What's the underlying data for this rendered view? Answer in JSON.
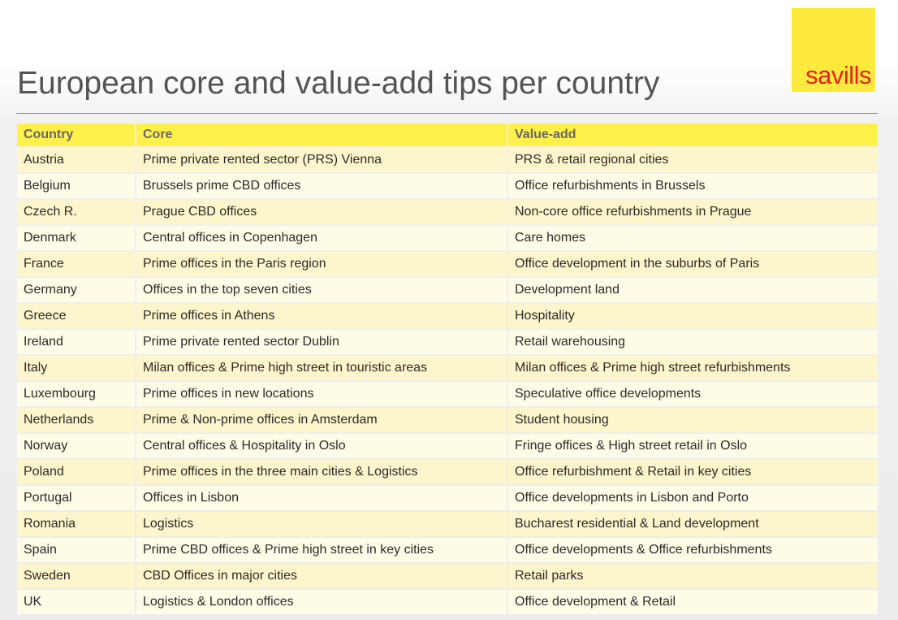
{
  "title": "European core and value-add tips per country",
  "logo": {
    "text": "savills",
    "background": "#fdea3d",
    "color": "#e2231a"
  },
  "colors": {
    "header_fill": "#fff04a",
    "row_fill_dark": "#fdf5cb",
    "row_fill_light": "#fefbe7"
  },
  "table": {
    "headers": [
      "Country",
      "Core",
      "Value-add"
    ],
    "rows": [
      [
        "Austria",
        "Prime private rented sector (PRS) Vienna",
        "PRS & retail regional cities"
      ],
      [
        "Belgium",
        "Brussels prime CBD offices",
        "Office refurbishments in Brussels"
      ],
      [
        "Czech R.",
        "Prague CBD offices",
        "Non-core office refurbishments in Prague"
      ],
      [
        "Denmark",
        "Central offices in Copenhagen",
        "Care homes"
      ],
      [
        "France",
        "Prime offices in the Paris region",
        "Office development in the suburbs of  Paris"
      ],
      [
        "Germany",
        "Offices in the top seven cities",
        "Development land"
      ],
      [
        "Greece",
        "Prime offices in Athens",
        "Hospitality"
      ],
      [
        "Ireland",
        "Prime private rented sector Dublin",
        "Retail warehousing"
      ],
      [
        "Italy",
        "Milan offices & Prime high street in touristic areas",
        "Milan offices & Prime high street refurbishments"
      ],
      [
        "Luxembourg",
        "Prime offices in new locations",
        "Speculative office developments"
      ],
      [
        "Netherlands",
        "Prime & Non-prime offices in Amsterdam",
        "Student housing"
      ],
      [
        "Norway",
        "Central offices & Hospitality in Oslo",
        "Fringe offices & High street retail in Oslo"
      ],
      [
        "Poland",
        "Prime offices in the three main cities & Logistics",
        "Office refurbishment & Retail in key cities"
      ],
      [
        "Portugal",
        "Offices in Lisbon",
        "Office developments in Lisbon and Porto"
      ],
      [
        "Romania",
        "Logistics",
        "Bucharest residential & Land  development"
      ],
      [
        "Spain",
        "Prime CBD offices & Prime high street in key cities",
        "Office developments & Office refurbishments"
      ],
      [
        "Sweden",
        "CBD Offices in major cities",
        "Retail parks"
      ],
      [
        "UK",
        "Logistics & London offices",
        "Office development & Retail"
      ]
    ]
  }
}
